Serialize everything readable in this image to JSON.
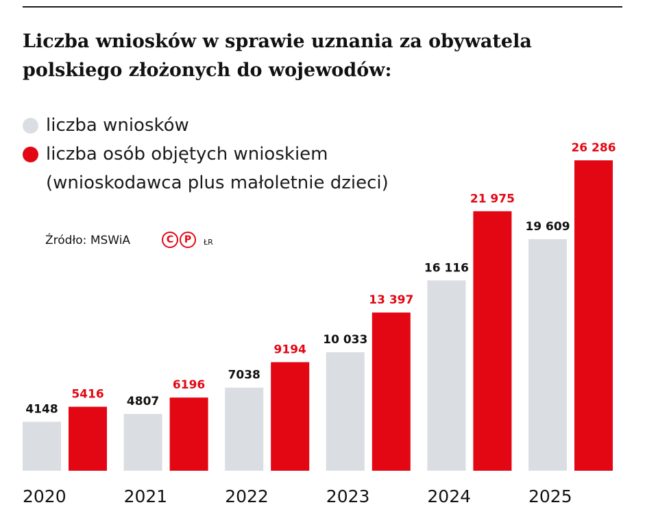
{
  "title": "Liczba wniosków w sprawie uznania za obywatela polskiego złożonych do wojewodów:",
  "legend": {
    "item1": "liczba wniosków",
    "item2_line1": "liczba osób objętych wnioskiem",
    "item2_line2": "(wnioskodawca plus małoletnie dzieci)"
  },
  "source": "Źródło: MSWiA",
  "logo_text": "©℗",
  "author": "ŁR",
  "colors": {
    "series1": "#dadee2",
    "series2": "#e30613",
    "label1": "#111111",
    "label2": "#e30613"
  },
  "chart_data": {
    "type": "bar",
    "categories": [
      "2020",
      "2021",
      "2022",
      "2023",
      "2024",
      "2025"
    ],
    "series": [
      {
        "name": "liczba wniosków",
        "values": [
          4148,
          4807,
          7038,
          10033,
          16116,
          19609
        ],
        "labels": [
          "4148",
          "4807",
          "7038",
          "10 033",
          "16 116",
          "19 609"
        ]
      },
      {
        "name": "liczba osób objętych wnioskiem",
        "values": [
          5416,
          6196,
          9194,
          13397,
          21975,
          26286
        ],
        "labels": [
          "5416",
          "6196",
          "9194",
          "13 397",
          "21 975",
          "26 286"
        ]
      }
    ],
    "ylim": [
      0,
      26286
    ],
    "grid": false,
    "legend_position": "top-left"
  }
}
